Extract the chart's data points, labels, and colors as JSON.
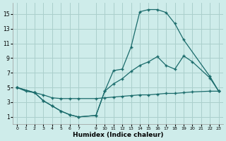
{
  "xlabel": "Humidex (Indice chaleur)",
  "bg_color": "#ceecea",
  "grid_color": "#aacfcc",
  "line_color": "#1a6b6b",
  "xlim": [
    -0.5,
    23.5
  ],
  "ylim": [
    0,
    16.5
  ],
  "xticks": [
    0,
    1,
    2,
    3,
    4,
    5,
    6,
    7,
    9,
    10,
    11,
    12,
    13,
    14,
    15,
    16,
    17,
    18,
    19,
    20,
    21,
    22,
    23
  ],
  "yticks": [
    1,
    3,
    5,
    7,
    9,
    11,
    13,
    15
  ],
  "line1_x": [
    0,
    1,
    2,
    3,
    4,
    5,
    6,
    7,
    9,
    10,
    11,
    12,
    13,
    14,
    15,
    16,
    17,
    18,
    19,
    20,
    22,
    23
  ],
  "line1_y": [
    5,
    4.5,
    4.3,
    4.0,
    3.6,
    3.5,
    3.5,
    3.5,
    3.5,
    3.6,
    3.7,
    3.8,
    3.9,
    4.0,
    4.0,
    4.1,
    4.2,
    4.2,
    4.3,
    4.4,
    4.5,
    4.5
  ],
  "line2_x": [
    0,
    2,
    3,
    4,
    5,
    6,
    7,
    9,
    10,
    11,
    12,
    13,
    14,
    15,
    16,
    17,
    18,
    19,
    22,
    23
  ],
  "line2_y": [
    5,
    4.3,
    3.2,
    2.5,
    1.8,
    1.3,
    1.0,
    1.2,
    4.5,
    7.3,
    7.5,
    10.5,
    15.3,
    15.6,
    15.6,
    15.2,
    13.7,
    11.5,
    6.5,
    4.5
  ],
  "line3_x": [
    0,
    2,
    3,
    4,
    5,
    6,
    7,
    9,
    10,
    11,
    12,
    13,
    14,
    15,
    16,
    17,
    18,
    19,
    20,
    22,
    23
  ],
  "line3_y": [
    5,
    4.3,
    3.2,
    2.5,
    1.8,
    1.3,
    1.0,
    1.2,
    4.5,
    5.5,
    6.2,
    7.2,
    8.0,
    8.5,
    9.2,
    8.0,
    7.5,
    9.3,
    8.5,
    6.3,
    4.5
  ]
}
